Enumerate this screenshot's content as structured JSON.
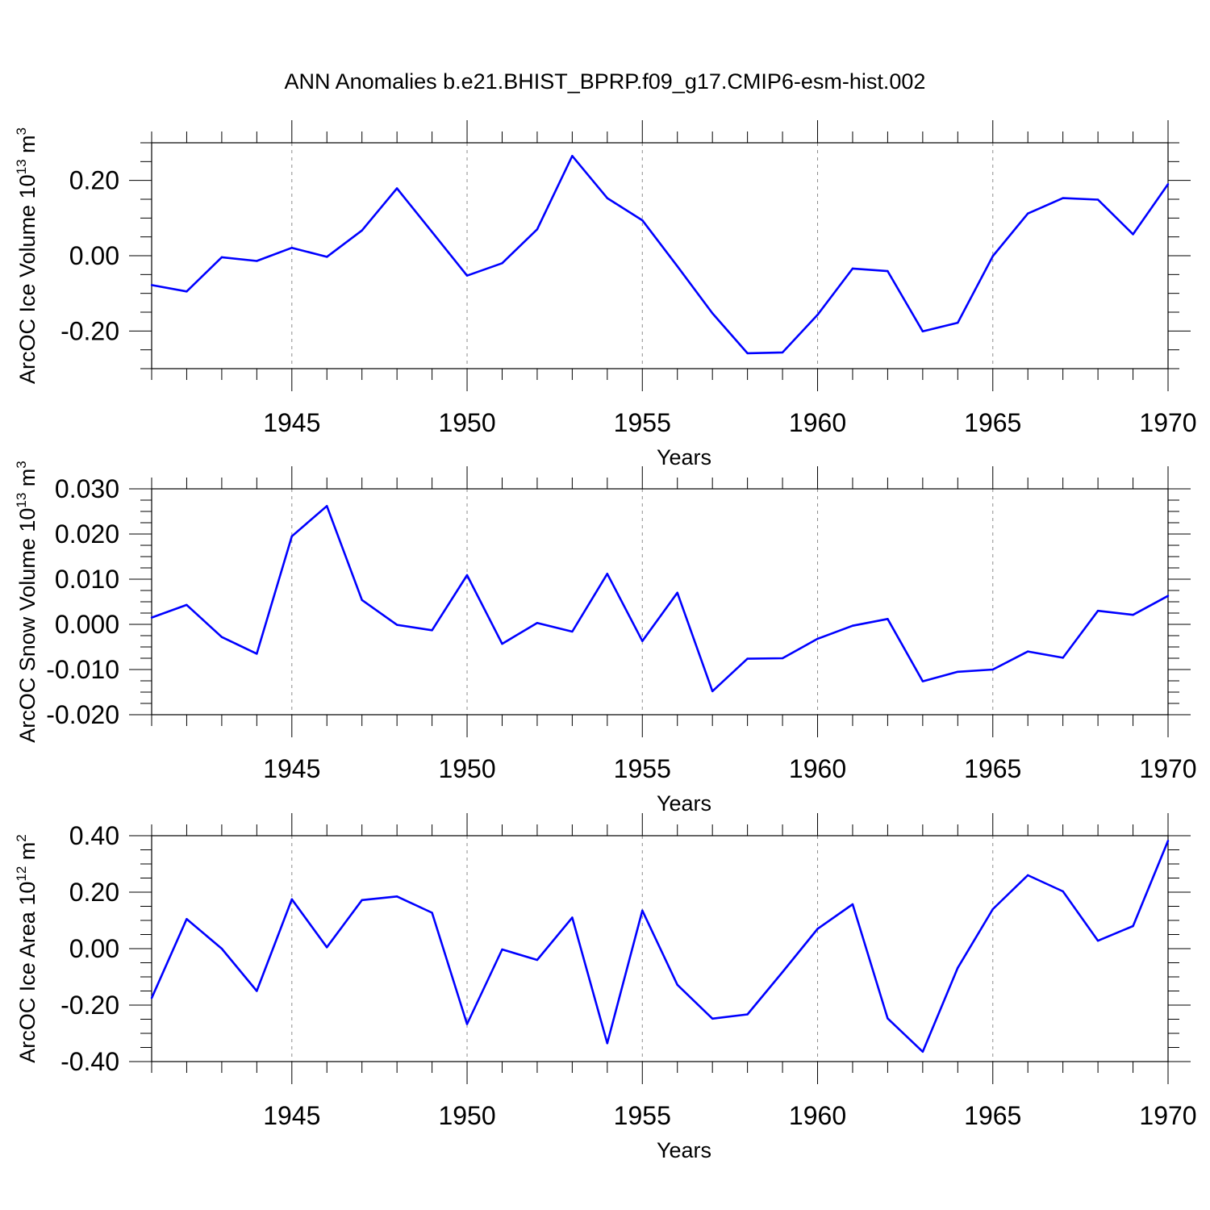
{
  "title": "ANN Anomalies b.e21.BHIST_BPRP.f09_g17.CMIP6-esm-hist.002",
  "colors": {
    "line": "#0000ff",
    "axis": "#000000",
    "grid": "#8c8c8c"
  },
  "chart_data": [
    {
      "type": "line",
      "ylabel": {
        "text": "ArcOC Ice Volume 10",
        "sup": "13",
        "unit": " m",
        "unit_sup": "3"
      },
      "xlabel": "Years",
      "xlim": [
        1941,
        1970
      ],
      "ylim": [
        -0.3,
        0.3
      ],
      "xticks": [
        1945,
        1950,
        1955,
        1960,
        1965,
        1970
      ],
      "xtick_labels": [
        "1945",
        "1950",
        "1955",
        "1960",
        "1965",
        "1970"
      ],
      "yticks": [
        -0.2,
        0.0,
        0.2
      ],
      "ytick_labels": [
        "-0.20",
        "0.00",
        "0.20"
      ],
      "grid": "vertical dashed at labeled years",
      "x": [
        1941,
        1942,
        1943,
        1944,
        1945,
        1946,
        1947,
        1948,
        1949,
        1950,
        1951,
        1952,
        1953,
        1954,
        1955,
        1956,
        1957,
        1958,
        1959,
        1960,
        1961,
        1962,
        1963,
        1964,
        1965,
        1966,
        1967,
        1968,
        1969,
        1970
      ],
      "values": [
        -0.078,
        -0.095,
        -0.004,
        -0.014,
        0.021,
        -0.003,
        0.067,
        0.179,
        0.063,
        -0.053,
        -0.02,
        0.07,
        0.265,
        0.153,
        0.094,
        -0.028,
        -0.153,
        -0.259,
        -0.257,
        -0.157,
        -0.034,
        -0.041,
        -0.201,
        -0.178,
        -0.001,
        0.112,
        0.153,
        0.149,
        0.057,
        0.19
      ]
    },
    {
      "type": "line",
      "ylabel": {
        "text": "ArcOC Snow Volume 10",
        "sup": "13",
        "unit": " m",
        "unit_sup": "3"
      },
      "xlabel": "Years",
      "xlim": [
        1941,
        1970
      ],
      "ylim": [
        -0.02,
        0.03
      ],
      "xticks": [
        1945,
        1950,
        1955,
        1960,
        1965,
        1970
      ],
      "xtick_labels": [
        "1945",
        "1950",
        "1955",
        "1960",
        "1965",
        "1970"
      ],
      "yticks": [
        -0.02,
        -0.01,
        0.0,
        0.01,
        0.02,
        0.03
      ],
      "ytick_labels": [
        "-0.020",
        "-0.010",
        "0.000",
        "0.010",
        "0.020",
        "0.030"
      ],
      "grid": "vertical dashed at labeled years",
      "x": [
        1941,
        1942,
        1943,
        1944,
        1945,
        1946,
        1947,
        1948,
        1949,
        1950,
        1951,
        1952,
        1953,
        1954,
        1955,
        1956,
        1957,
        1958,
        1959,
        1960,
        1961,
        1962,
        1963,
        1964,
        1965,
        1966,
        1967,
        1968,
        1969,
        1970
      ],
      "values": [
        0.0015,
        0.0043,
        -0.0028,
        -0.0065,
        0.0195,
        0.0262,
        0.0054,
        -0.0001,
        -0.0013,
        0.0109,
        -0.0043,
        0.0003,
        -0.0016,
        0.0112,
        -0.0037,
        0.007,
        -0.0148,
        -0.0076,
        -0.0075,
        -0.0032,
        -0.0003,
        0.0012,
        -0.0126,
        -0.0105,
        -0.01,
        -0.006,
        -0.0074,
        0.003,
        0.0021,
        0.0063
      ]
    },
    {
      "type": "line",
      "ylabel": {
        "text": "ArcOC Ice Area 10",
        "sup": "12",
        "unit": " m",
        "unit_sup": "2"
      },
      "xlabel": "Years",
      "xlim": [
        1941,
        1970
      ],
      "ylim": [
        -0.4,
        0.4
      ],
      "xticks": [
        1945,
        1950,
        1955,
        1960,
        1965,
        1970
      ],
      "xtick_labels": [
        "1945",
        "1950",
        "1955",
        "1960",
        "1965",
        "1970"
      ],
      "yticks": [
        -0.4,
        -0.2,
        0.0,
        0.2,
        0.4
      ],
      "ytick_labels": [
        "-0.40",
        "-0.20",
        "0.00",
        "0.20",
        "0.40"
      ],
      "grid": "vertical dashed at labeled years",
      "x": [
        1941,
        1942,
        1943,
        1944,
        1945,
        1946,
        1947,
        1948,
        1949,
        1950,
        1951,
        1952,
        1953,
        1954,
        1955,
        1956,
        1957,
        1958,
        1959,
        1960,
        1961,
        1962,
        1963,
        1964,
        1965,
        1966,
        1967,
        1968,
        1969,
        1970
      ],
      "values": [
        -0.175,
        0.105,
        0.0,
        -0.15,
        0.175,
        0.005,
        0.172,
        0.185,
        0.127,
        -0.267,
        -0.003,
        -0.04,
        0.11,
        -0.335,
        0.135,
        -0.128,
        -0.248,
        -0.233,
        -0.083,
        0.07,
        0.157,
        -0.247,
        -0.365,
        -0.068,
        0.14,
        0.26,
        0.203,
        0.028,
        0.08,
        0.382
      ]
    }
  ]
}
